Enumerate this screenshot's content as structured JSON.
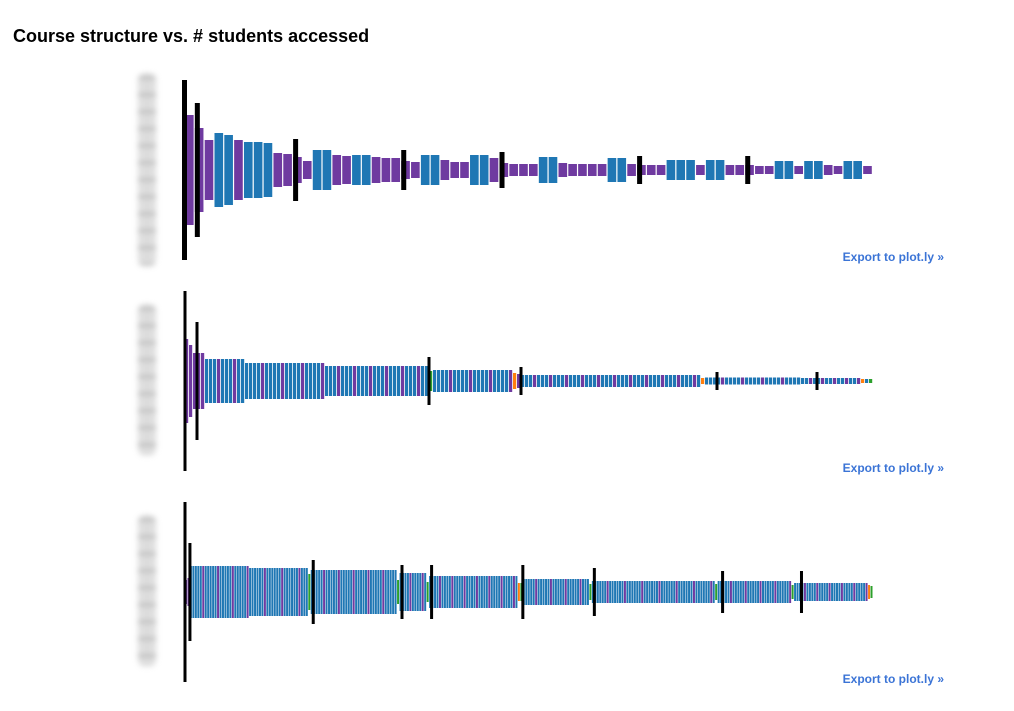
{
  "page": {
    "title": "Course structure vs. # students accessed",
    "export_label": "Export to plot.ly »"
  },
  "colors": {
    "video": "#1f77b4",
    "problem": "#6f3aa0",
    "other_green": "#2ca02c",
    "other_orange": "#ff7f0e",
    "chapter_divider": "#000000",
    "link": "#3b74d6"
  },
  "chart_data": [
    {
      "type": "bar",
      "title": "",
      "xlabel": "",
      "ylabel": "",
      "orientation": "diverging-vertical",
      "dividers": [
        {
          "index": 0,
          "value": 90
        },
        {
          "index": 1,
          "value": 67
        },
        {
          "index": 11,
          "value": 31
        },
        {
          "index": 22,
          "value": 20
        },
        {
          "index": 32,
          "value": 18
        },
        {
          "index": 46,
          "value": 14
        },
        {
          "index": 57,
          "value": 14
        }
      ],
      "bars": [
        {
          "v": 55,
          "c": "problem"
        },
        {
          "v": 42,
          "c": "problem"
        },
        {
          "v": 30,
          "c": "problem"
        },
        {
          "v": 37,
          "c": "video"
        },
        {
          "v": 35,
          "c": "video"
        },
        {
          "v": 30,
          "c": "problem"
        },
        {
          "v": 28,
          "c": "video"
        },
        {
          "v": 28,
          "c": "video"
        },
        {
          "v": 27,
          "c": "video"
        },
        {
          "v": 17,
          "c": "problem"
        },
        {
          "v": 16,
          "c": "problem"
        },
        {
          "v": 13,
          "c": "problem"
        },
        {
          "v": 9,
          "c": "problem"
        },
        {
          "v": 20,
          "c": "video"
        },
        {
          "v": 20,
          "c": "video"
        },
        {
          "v": 15,
          "c": "problem"
        },
        {
          "v": 14,
          "c": "problem"
        },
        {
          "v": 15,
          "c": "video"
        },
        {
          "v": 15,
          "c": "video"
        },
        {
          "v": 13,
          "c": "problem"
        },
        {
          "v": 12,
          "c": "problem"
        },
        {
          "v": 12,
          "c": "problem"
        },
        {
          "v": 9,
          "c": "problem"
        },
        {
          "v": 8,
          "c": "problem"
        },
        {
          "v": 15,
          "c": "video"
        },
        {
          "v": 15,
          "c": "video"
        },
        {
          "v": 10,
          "c": "problem"
        },
        {
          "v": 8,
          "c": "problem"
        },
        {
          "v": 8,
          "c": "problem"
        },
        {
          "v": 15,
          "c": "video"
        },
        {
          "v": 15,
          "c": "video"
        },
        {
          "v": 12,
          "c": "problem"
        },
        {
          "v": 7,
          "c": "problem"
        },
        {
          "v": 6,
          "c": "problem"
        },
        {
          "v": 6,
          "c": "problem"
        },
        {
          "v": 6,
          "c": "problem"
        },
        {
          "v": 13,
          "c": "video"
        },
        {
          "v": 13,
          "c": "video"
        },
        {
          "v": 7,
          "c": "problem"
        },
        {
          "v": 6,
          "c": "problem"
        },
        {
          "v": 6,
          "c": "problem"
        },
        {
          "v": 6,
          "c": "problem"
        },
        {
          "v": 6,
          "c": "problem"
        },
        {
          "v": 12,
          "c": "video"
        },
        {
          "v": 12,
          "c": "video"
        },
        {
          "v": 6,
          "c": "problem"
        },
        {
          "v": 5,
          "c": "problem"
        },
        {
          "v": 5,
          "c": "problem"
        },
        {
          "v": 5,
          "c": "problem"
        },
        {
          "v": 10,
          "c": "video"
        },
        {
          "v": 10,
          "c": "video"
        },
        {
          "v": 10,
          "c": "video"
        },
        {
          "v": 5,
          "c": "problem"
        },
        {
          "v": 10,
          "c": "video"
        },
        {
          "v": 10,
          "c": "video"
        },
        {
          "v": 5,
          "c": "problem"
        },
        {
          "v": 5,
          "c": "problem"
        },
        {
          "v": 5,
          "c": "problem"
        },
        {
          "v": 4,
          "c": "problem"
        },
        {
          "v": 4,
          "c": "problem"
        },
        {
          "v": 9,
          "c": "video"
        },
        {
          "v": 9,
          "c": "video"
        },
        {
          "v": 4,
          "c": "problem"
        },
        {
          "v": 9,
          "c": "video"
        },
        {
          "v": 9,
          "c": "video"
        },
        {
          "v": 5,
          "c": "problem"
        },
        {
          "v": 4,
          "c": "problem"
        },
        {
          "v": 9,
          "c": "video"
        },
        {
          "v": 9,
          "c": "video"
        },
        {
          "v": 4,
          "c": "problem"
        }
      ]
    },
    {
      "type": "bar",
      "title": "",
      "xlabel": "",
      "ylabel": "",
      "orientation": "diverging-vertical",
      "dividers": [
        {
          "index": 0,
          "value": 90
        },
        {
          "index": 3,
          "value": 59
        },
        {
          "index": 61,
          "value": 24
        },
        {
          "index": 84,
          "value": 14
        },
        {
          "index": 133,
          "value": 9
        },
        {
          "index": 158,
          "value": 9
        }
      ],
      "bars_spec": [
        {
          "n": 1,
          "v": 42,
          "c": "problem"
        },
        {
          "n": 1,
          "v": 36,
          "c": "problem"
        },
        {
          "n": 3,
          "v": 28,
          "c": "problem"
        },
        {
          "n": 10,
          "v": 22,
          "c": "video",
          "alt": "problem",
          "every": 4
        },
        {
          "n": 20,
          "v": 18,
          "c": "video",
          "alt": "problem",
          "every": 5
        },
        {
          "n": 26,
          "v": 15,
          "c": "video",
          "alt": "problem",
          "every": 4
        },
        {
          "n": 1,
          "v": 10,
          "c": "other_green"
        },
        {
          "n": 20,
          "v": 11,
          "c": "video",
          "alt": "problem",
          "every": 5
        },
        {
          "n": 1,
          "v": 8,
          "c": "other_orange"
        },
        {
          "n": 1,
          "v": 7,
          "c": "problem"
        },
        {
          "n": 45,
          "v": 6,
          "c": "video",
          "alt": "problem",
          "every": 4
        },
        {
          "n": 1,
          "v": 3,
          "c": "other_orange"
        },
        {
          "n": 24,
          "v": 3.5,
          "c": "video",
          "alt": "problem",
          "every": 5
        },
        {
          "n": 15,
          "v": 3,
          "c": "video",
          "alt": "problem",
          "every": 3
        },
        {
          "n": 1,
          "v": 2,
          "c": "other_orange"
        },
        {
          "n": 1,
          "v": 2,
          "c": "video"
        },
        {
          "n": 1,
          "v": 2,
          "c": "other_green"
        }
      ]
    },
    {
      "type": "bar",
      "title": "",
      "xlabel": "",
      "ylabel": "",
      "orientation": "diverging-vertical",
      "dividers": [
        {
          "index": 0,
          "value": 90
        },
        {
          "index": 2,
          "value": 49
        },
        {
          "index": 52,
          "value": 32
        },
        {
          "index": 88,
          "value": 27
        },
        {
          "index": 100,
          "value": 27
        },
        {
          "index": 137,
          "value": 27
        },
        {
          "index": 166,
          "value": 24
        },
        {
          "index": 218,
          "value": 21
        },
        {
          "index": 250,
          "value": 21
        }
      ],
      "bars_spec": [
        {
          "n": 1,
          "v": 12,
          "c": "problem"
        },
        {
          "n": 1,
          "v": 14,
          "c": "problem"
        },
        {
          "n": 24,
          "v": 26,
          "c": "video",
          "alt": "problem",
          "every": 6
        },
        {
          "n": 24,
          "v": 24,
          "c": "video",
          "alt": "problem",
          "every": 7
        },
        {
          "n": 1,
          "v": 18,
          "c": "other_green"
        },
        {
          "n": 35,
          "v": 22,
          "c": "video",
          "alt": "problem",
          "every": 6
        },
        {
          "n": 1,
          "v": 12,
          "c": "other_green"
        },
        {
          "n": 11,
          "v": 19,
          "c": "video",
          "alt": "problem",
          "every": 5
        },
        {
          "n": 1,
          "v": 10,
          "c": "other_green"
        },
        {
          "n": 36,
          "v": 16,
          "c": "video",
          "alt": "problem",
          "every": 5
        },
        {
          "n": 1,
          "v": 9,
          "c": "other_orange"
        },
        {
          "n": 1,
          "v": 9,
          "c": "other_green"
        },
        {
          "n": 27,
          "v": 13,
          "c": "video",
          "alt": "problem",
          "every": 6
        },
        {
          "n": 1,
          "v": 8,
          "c": "other_green"
        },
        {
          "n": 50,
          "v": 11,
          "c": "video",
          "alt": "problem",
          "every": 7
        },
        {
          "n": 1,
          "v": 8,
          "c": "other_green"
        },
        {
          "n": 30,
          "v": 11,
          "c": "video",
          "alt": "problem",
          "every": 6
        },
        {
          "n": 1,
          "v": 7,
          "c": "other_green"
        },
        {
          "n": 30,
          "v": 9,
          "c": "video",
          "alt": "problem",
          "every": 5
        },
        {
          "n": 1,
          "v": 7,
          "c": "other_orange"
        },
        {
          "n": 1,
          "v": 6,
          "c": "other_green"
        }
      ]
    }
  ]
}
